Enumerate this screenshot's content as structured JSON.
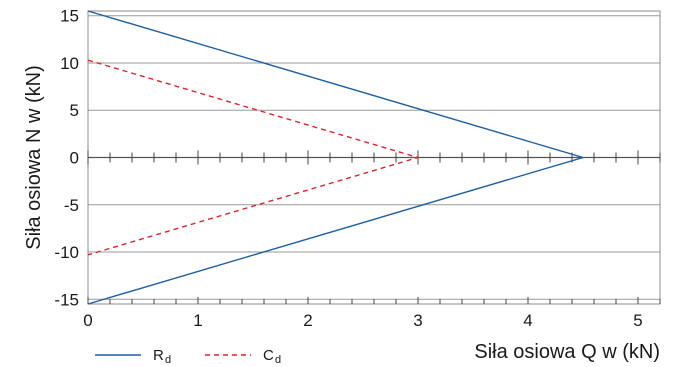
{
  "chart_data": {
    "type": "line",
    "xlabel": "Siła osiowa Q w (kN)",
    "ylabel": "Siła osiowa N w (kN)",
    "xlim": [
      0,
      5.2
    ],
    "ylim": [
      -15.5,
      15.5
    ],
    "x_ticks": [
      "0",
      "1",
      "2",
      "3",
      "4",
      "5"
    ],
    "y_ticks": [
      "15",
      "10",
      "5",
      "0",
      "-5",
      "-10",
      "-15"
    ],
    "x_tick_values": [
      0,
      1,
      2,
      3,
      4,
      5
    ],
    "y_tick_values": [
      15,
      10,
      5,
      0,
      -5,
      -10,
      -15
    ],
    "grid": "horizontal",
    "legend_position": "bottom-left",
    "series": [
      {
        "name": "R",
        "subscript": "d",
        "color": "#1f5fa0",
        "style": "solid",
        "x": [
          0,
          4.5,
          0
        ],
        "y": [
          15.5,
          0,
          -15.5
        ]
      },
      {
        "name": "C",
        "subscript": "d",
        "color": "#d9262c",
        "style": "dashed",
        "x": [
          0,
          3.0,
          0
        ],
        "y": [
          10.3,
          0,
          -10.3
        ]
      }
    ]
  }
}
